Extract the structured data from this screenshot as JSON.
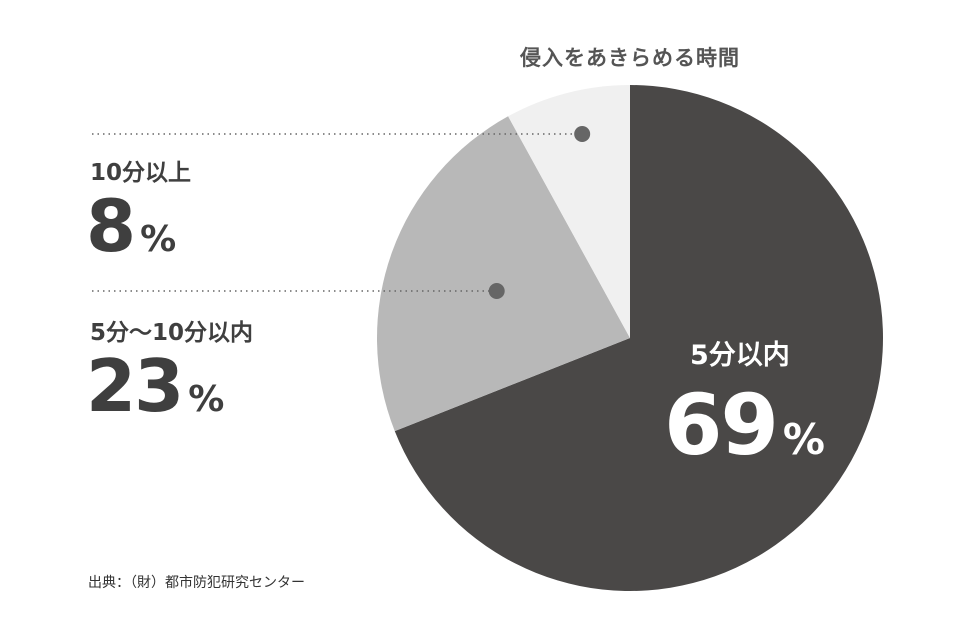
{
  "chart_data": {
    "type": "pie",
    "title": "侵入をあきらめる時間",
    "unit": "%",
    "slices": [
      {
        "label": "5分以内",
        "value": 69,
        "color": "#4a4847"
      },
      {
        "label": "5分〜10分以内",
        "value": 23,
        "color": "#b8b8b8"
      },
      {
        "label": "10分以上",
        "value": 8,
        "color": "#f0f0f0"
      }
    ]
  },
  "source": "出典：（財）都市防犯研究センター"
}
